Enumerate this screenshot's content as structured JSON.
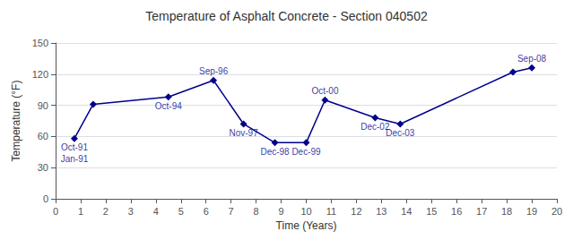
{
  "chart_data": {
    "type": "line",
    "title": "Temperature of Asphalt Concrete - Section 040502",
    "xlabel": "Time (Years)",
    "ylabel": "Temperature (°F)",
    "x": [
      0.75,
      1.5,
      4.5,
      6.3,
      7.5,
      8.75,
      10.0,
      10.75,
      12.75,
      13.75,
      18.25,
      19.0
    ],
    "values": [
      58,
      91,
      98,
      114,
      72,
      54,
      54,
      95,
      78,
      72,
      122,
      126
    ],
    "color": "#00008B",
    "marker": "diamond",
    "xlim": [
      0,
      20
    ],
    "xticks": [
      0,
      1,
      2,
      3,
      4,
      5,
      6,
      7,
      8,
      9,
      10,
      11,
      12,
      13,
      14,
      15,
      16,
      17,
      18,
      19,
      20
    ],
    "ylim": [
      0,
      150
    ],
    "yticks": [
      0,
      30,
      60,
      90,
      120,
      150
    ],
    "grid": true,
    "annotations": [
      {
        "text": "Oct-91",
        "x": 0.75,
        "y": 58
      },
      {
        "text": "Jan-91",
        "x": 0.75,
        "y": 58
      },
      {
        "text": "Oct-94",
        "x": 4.5,
        "y": 98
      },
      {
        "text": "Sep-96",
        "x": 6.3,
        "y": 114
      },
      {
        "text": "Nov-97",
        "x": 7.5,
        "y": 72
      },
      {
        "text": "Dec-98",
        "x": 8.75,
        "y": 54
      },
      {
        "text": "Dec-99",
        "x": 10.0,
        "y": 54
      },
      {
        "text": "Oct-00",
        "x": 10.75,
        "y": 95
      },
      {
        "text": "Dec-02",
        "x": 12.75,
        "y": 78
      },
      {
        "text": "Dec-03",
        "x": 13.75,
        "y": 72
      },
      {
        "text": "Sep-08",
        "x": 19.0,
        "y": 126
      }
    ]
  }
}
